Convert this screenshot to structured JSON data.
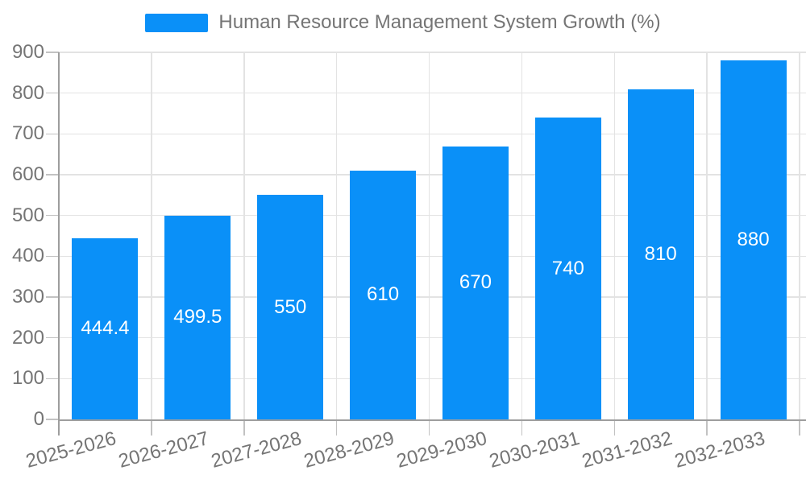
{
  "legend": {
    "label": "Human Resource Management System Growth (%)"
  },
  "colors": {
    "bar": "#0A90F8",
    "label_text": "#757575",
    "value_text": "#ffffff",
    "gridline": "#e3e3e3",
    "axis_line": "#9e9e9e",
    "tick": "#c2c2c2",
    "background": "#ffffff"
  },
  "chart_data": {
    "type": "bar",
    "title": "Human Resource Management System Growth (%)",
    "categories": [
      "2025-2026",
      "2026-2027",
      "2027-2028",
      "2028-2029",
      "2029-2030",
      "2030-2031",
      "2031-2032",
      "2032-2033"
    ],
    "values": [
      444.4,
      499.5,
      550,
      610,
      670,
      740,
      810,
      880
    ],
    "value_labels": [
      "444.4",
      "499.5",
      "550",
      "610",
      "670",
      "740",
      "810",
      "880"
    ],
    "yticks": [
      0,
      100,
      200,
      300,
      400,
      500,
      600,
      700,
      800,
      900
    ],
    "ylim": [
      0,
      900
    ],
    "xlabel": "",
    "ylabel": "",
    "grid": true,
    "legend_position": "top-center",
    "x_label_rotation_deg": -15
  }
}
